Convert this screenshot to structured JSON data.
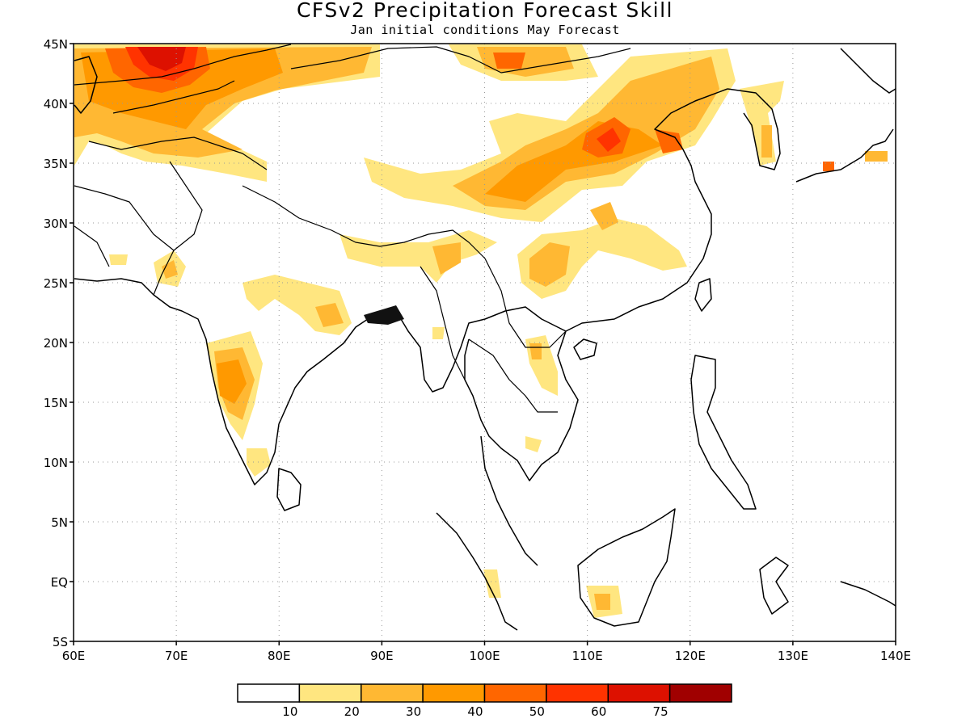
{
  "title": "CFSv2 Precipitation Forecast Skill",
  "subtitle": "Jan initial conditions   May Forecast",
  "map": {
    "region": "Asia monsoon region",
    "lon_range": [
      60,
      140
    ],
    "lat_range": [
      -5,
      45
    ],
    "lon_ticks": [
      "60E",
      "70E",
      "80E",
      "90E",
      "100E",
      "110E",
      "120E",
      "130E",
      "140E"
    ],
    "lat_ticks": [
      "5S",
      "EQ",
      "5N",
      "10N",
      "15N",
      "20N",
      "25N",
      "30N",
      "35N",
      "40N",
      "45N"
    ],
    "gridlines": "dotted",
    "skill_areas": [
      {
        "name": "central-asia",
        "peak_level": 60
      },
      {
        "name": "northwest-india-pakistan",
        "peak_level": 40
      },
      {
        "name": "tibetan-plateau",
        "peak_level": 40
      },
      {
        "name": "north-china",
        "peak_level": 50
      },
      {
        "name": "south-china",
        "peak_level": 40
      },
      {
        "name": "western-ghats",
        "peak_level": 40
      },
      {
        "name": "central-india",
        "peak_level": 30
      },
      {
        "name": "korea-japan",
        "peak_level": 40
      },
      {
        "name": "indochina",
        "peak_level": 20
      },
      {
        "name": "borneo-sumatra",
        "peak_level": 30
      }
    ]
  },
  "legend": {
    "levels": [
      "10",
      "20",
      "30",
      "40",
      "50",
      "60",
      "75"
    ],
    "colors": [
      "#ffffff",
      "#ffe680",
      "#ffb833",
      "#ff9900",
      "#ff6600",
      "#ff3300",
      "#dd1100",
      "#a00000"
    ]
  },
  "colors": {
    "coastline": "#000000",
    "frame": "#000000",
    "grid": "#999999"
  }
}
